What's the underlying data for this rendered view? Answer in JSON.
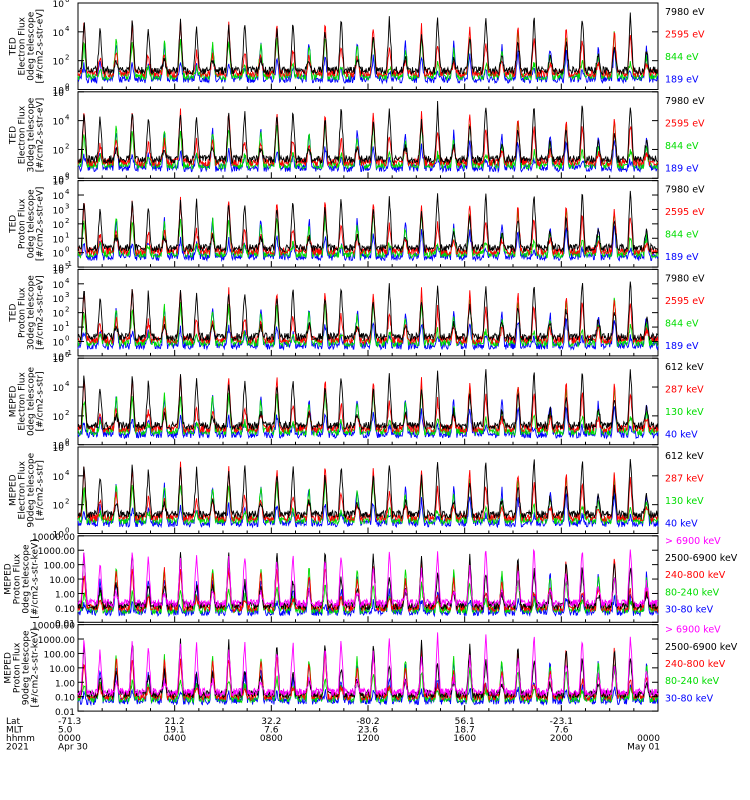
{
  "chart_data": {
    "type": "line",
    "panels": [
      {
        "ylabel": [
          "TED",
          "Electron Flux",
          "0deg telescope",
          "[#/cm2-s-str-eV]"
        ],
        "yticks": [
          {
            "base": "10",
            "exp": "6",
            "v": 1000000.0
          },
          {
            "base": "10",
            "exp": "4",
            "v": 10000.0
          },
          {
            "base": "10",
            "exp": "2",
            "v": 100.0
          },
          {
            "base": "10",
            "exp": "0",
            "v": 1
          }
        ],
        "log": true,
        "ylim": [
          1,
          1000000.0
        ],
        "series": [
          {
            "name": "7980 eV",
            "color": "#000000"
          },
          {
            "name": "2595 eV",
            "color": "#ff0000"
          },
          {
            "name": "844 eV",
            "color": "#00dd00"
          },
          {
            "name": "189 eV",
            "color": "#0000ff"
          }
        ]
      },
      {
        "ylabel": [
          "TED",
          "Electron Flux",
          "30deg telescope",
          "[#/cm2-s-str-eV]"
        ],
        "yticks": [
          {
            "base": "10",
            "exp": "6",
            "v": 1000000.0
          },
          {
            "base": "10",
            "exp": "4",
            "v": 10000.0
          },
          {
            "base": "10",
            "exp": "2",
            "v": 100.0
          },
          {
            "base": "10",
            "exp": "0",
            "v": 1
          }
        ],
        "log": true,
        "ylim": [
          1,
          1000000.0
        ],
        "series": [
          {
            "name": "7980 eV",
            "color": "#000000"
          },
          {
            "name": "2595 eV",
            "color": "#ff0000"
          },
          {
            "name": "844 eV",
            "color": "#00dd00"
          },
          {
            "name": "189 eV",
            "color": "#0000ff"
          }
        ]
      },
      {
        "ylabel": [
          "TED",
          "Proton Flux",
          "0deg telescope",
          "[#/cm2-s-str-eV]"
        ],
        "yticks": [
          {
            "base": "10",
            "exp": "5",
            "v": 100000.0
          },
          {
            "base": "10",
            "exp": "4",
            "v": 10000.0
          },
          {
            "base": "10",
            "exp": "3",
            "v": 1000.0
          },
          {
            "base": "10",
            "exp": "2",
            "v": 100.0
          },
          {
            "base": "10",
            "exp": "1",
            "v": 10.0
          },
          {
            "base": "10",
            "exp": "0",
            "v": 1
          },
          {
            "base": "10",
            "exp": "-1",
            "v": 0.1
          }
        ],
        "log": true,
        "ylim": [
          0.1,
          100000.0
        ],
        "series": [
          {
            "name": "7980 eV",
            "color": "#000000"
          },
          {
            "name": "2595 eV",
            "color": "#ff0000"
          },
          {
            "name": "844 eV",
            "color": "#00dd00"
          },
          {
            "name": "189 eV",
            "color": "#0000ff"
          }
        ]
      },
      {
        "ylabel": [
          "TED",
          "Proton Flux",
          "30deg telescope",
          "[#/cm2-s-str-eV]"
        ],
        "yticks": [
          {
            "base": "10",
            "exp": "5",
            "v": 100000.0
          },
          {
            "base": "10",
            "exp": "4",
            "v": 10000.0
          },
          {
            "base": "10",
            "exp": "3",
            "v": 1000.0
          },
          {
            "base": "10",
            "exp": "2",
            "v": 100.0
          },
          {
            "base": "10",
            "exp": "1",
            "v": 10.0
          },
          {
            "base": "10",
            "exp": "0",
            "v": 1
          },
          {
            "base": "10",
            "exp": "-1",
            "v": 0.1
          }
        ],
        "log": true,
        "ylim": [
          0.1,
          100000.0
        ],
        "series": [
          {
            "name": "7980 eV",
            "color": "#000000"
          },
          {
            "name": "2595 eV",
            "color": "#ff0000"
          },
          {
            "name": "844 eV",
            "color": "#00dd00"
          },
          {
            "name": "189 eV",
            "color": "#0000ff"
          }
        ]
      },
      {
        "ylabel": [
          "MEPED",
          "Electron Flux",
          "0deg telescope",
          "[#/cm2-s-str]"
        ],
        "yticks": [
          {
            "base": "10",
            "exp": "6",
            "v": 1000000.0
          },
          {
            "base": "10",
            "exp": "4",
            "v": 10000.0
          },
          {
            "base": "10",
            "exp": "2",
            "v": 100.0
          },
          {
            "base": "10",
            "exp": "0",
            "v": 1
          }
        ],
        "log": true,
        "ylim": [
          1,
          1000000.0
        ],
        "series": [
          {
            "name": "612 keV",
            "color": "#000000"
          },
          {
            "name": "287 keV",
            "color": "#ff0000"
          },
          {
            "name": "130 keV",
            "color": "#00dd00"
          },
          {
            "name": "40 keV",
            "color": "#0000ff"
          }
        ]
      },
      {
        "ylabel": [
          "MEPED",
          "Electron Flux",
          "90deg telescope",
          "[#/cm2-s-str]"
        ],
        "yticks": [
          {
            "base": "10",
            "exp": "6",
            "v": 1000000.0
          },
          {
            "base": "10",
            "exp": "4",
            "v": 10000.0
          },
          {
            "base": "10",
            "exp": "2",
            "v": 100.0
          },
          {
            "base": "10",
            "exp": "0",
            "v": 1
          }
        ],
        "log": true,
        "ylim": [
          1,
          1000000.0
        ],
        "series": [
          {
            "name": "612 keV",
            "color": "#000000"
          },
          {
            "name": "287 keV",
            "color": "#ff0000"
          },
          {
            "name": "130 keV",
            "color": "#00dd00"
          },
          {
            "name": "40 keV",
            "color": "#0000ff"
          }
        ]
      },
      {
        "ylabel": [
          "MEPED",
          "Proton Flux",
          "0deg telescope",
          "[#/cm2-s-str-keV]"
        ],
        "yticks": [
          {
            "label": "10000.00",
            "v": 10000
          },
          {
            "label": "1000.00",
            "v": 1000
          },
          {
            "label": "100.00",
            "v": 100
          },
          {
            "label": "10.00",
            "v": 10
          },
          {
            "label": "1.00",
            "v": 1
          },
          {
            "label": "0.10",
            "v": 0.1
          },
          {
            "label": "0.01",
            "v": 0.01
          }
        ],
        "log": true,
        "ylim": [
          0.01,
          10000
        ],
        "series": [
          {
            "name": "> 6900 keV",
            "color": "#ff00ff"
          },
          {
            "name": "2500-6900 keV",
            "color": "#000000"
          },
          {
            "name": "240-800 keV",
            "color": "#ff0000"
          },
          {
            "name": "80-240 keV",
            "color": "#00dd00"
          },
          {
            "name": "30-80 keV",
            "color": "#0000ff"
          }
        ]
      },
      {
        "ylabel": [
          "MEPED",
          "Proton Flux",
          "90deg telescope",
          "[#/cm2-s-str-keV]"
        ],
        "yticks": [
          {
            "label": "10000.00",
            "v": 10000
          },
          {
            "label": "1000.00",
            "v": 1000
          },
          {
            "label": "100.00",
            "v": 100
          },
          {
            "label": "10.00",
            "v": 10
          },
          {
            "label": "1.00",
            "v": 1
          },
          {
            "label": "0.10",
            "v": 0.1
          },
          {
            "label": "0.01",
            "v": 0.01
          }
        ],
        "log": true,
        "ylim": [
          0.01,
          10000
        ],
        "series": [
          {
            "name": "> 6900 keV",
            "color": "#ff00ff"
          },
          {
            "name": "2500-6900 keV",
            "color": "#000000"
          },
          {
            "name": "240-800 keV",
            "color": "#ff0000"
          },
          {
            "name": "80-240 keV",
            "color": "#00dd00"
          },
          {
            "name": "30-80 keV",
            "color": "#0000ff"
          }
        ]
      }
    ],
    "xaxis": {
      "xlim_hours": [
        0,
        24
      ],
      "row_labels": [
        "Lat",
        "MLT",
        "hhmm",
        "2021"
      ],
      "ticks": [
        {
          "hour": 0,
          "lat": "-71.3",
          "mlt": "5.0",
          "hhmm": "0000",
          "date": "Apr 30"
        },
        {
          "hour": 4,
          "lat": "21.2",
          "mlt": "19.1",
          "hhmm": "0400",
          "date": ""
        },
        {
          "hour": 8,
          "lat": "32.2",
          "mlt": "7.6",
          "hhmm": "0800",
          "date": ""
        },
        {
          "hour": 12,
          "lat": "-80.2",
          "mlt": "23.6",
          "hhmm": "1200",
          "date": ""
        },
        {
          "hour": 16,
          "lat": "56.1",
          "mlt": "18.7",
          "hhmm": "1600",
          "date": ""
        },
        {
          "hour": 20,
          "lat": "-23.1",
          "mlt": "7.6",
          "hhmm": "2000",
          "date": ""
        },
        {
          "hour": 24,
          "lat": "",
          "mlt": "",
          "hhmm": "0000",
          "date": "May 01"
        }
      ]
    }
  }
}
